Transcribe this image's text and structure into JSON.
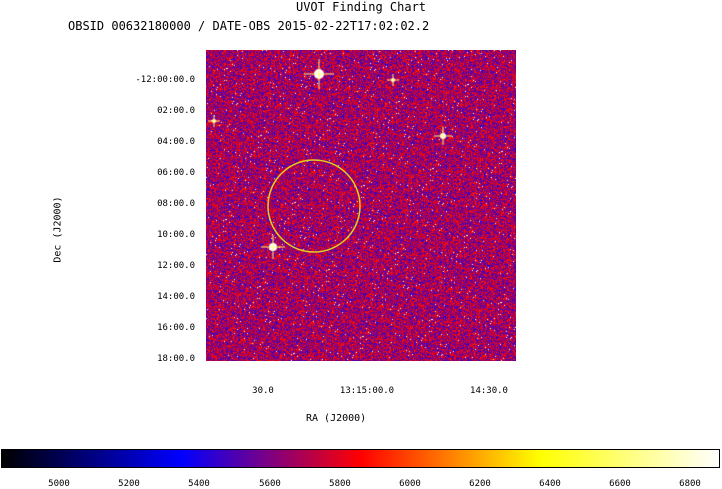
{
  "title": "UVOT Finding Chart",
  "subtitle": "OBSID 00632180000 / DATE-OBS 2015-02-22T17:02:02.2",
  "axes": {
    "xlabel": "RA (J2000)",
    "ylabel": "Dec (J2000)",
    "xticks": [
      "30.0",
      "13:15:00.0",
      "14:30.0"
    ],
    "yticks": [
      "-12:00:00.0",
      "02:00.0",
      "04:00.0",
      "06:00.0",
      "08:00.0",
      "10:00.0",
      "12:00.0",
      "14:00.0",
      "16:00.0",
      "18:00.0"
    ]
  },
  "colorbar": {
    "ticks": [
      "5000",
      "5200",
      "5400",
      "5600",
      "5800",
      "6000",
      "6200",
      "6400",
      "6600",
      "6800"
    ],
    "colors": [
      "#000000",
      "#0000ff",
      "#ff0000",
      "#ffff00",
      "#ffffff"
    ]
  },
  "marker": {
    "shape": "circle",
    "color": "#e0d020"
  }
}
